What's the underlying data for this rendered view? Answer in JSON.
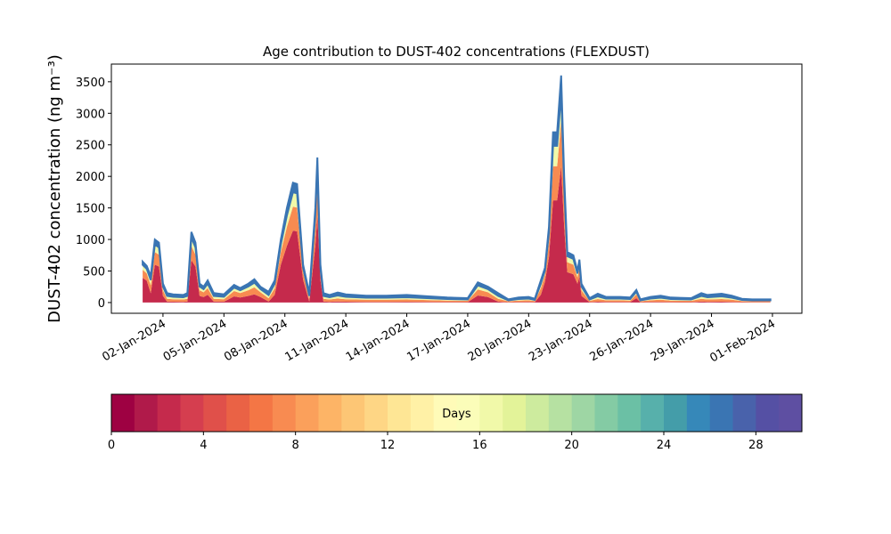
{
  "chart_data": {
    "type": "stacked_area",
    "title": "Age contribution to DUST-402 concentrations (FLEXDUST)",
    "ylabel": "DUST-402 concentration (ng m⁻³)",
    "x": [
      1.0,
      1.2,
      1.4,
      1.6,
      1.8,
      2.0,
      2.2,
      2.5,
      3.0,
      3.2,
      3.4,
      3.6,
      3.8,
      4.0,
      4.2,
      4.5,
      5.0,
      5.5,
      5.8,
      6.2,
      6.5,
      6.8,
      7.2,
      7.5,
      7.8,
      8.1,
      8.4,
      8.6,
      8.9,
      9.2,
      9.5,
      9.6,
      9.75,
      9.9,
      10.2,
      10.6,
      11,
      12,
      13,
      14,
      15,
      16,
      17,
      17.5,
      18,
      18.5,
      19,
      19.5,
      20,
      20.3,
      20.6,
      20.8,
      21,
      21.2,
      21.4,
      21.6,
      21.75,
      21.9,
      22.2,
      22.4,
      22.5,
      22.6,
      23,
      23.4,
      23.8,
      24.5,
      25,
      25.3,
      25.5,
      26,
      26.5,
      27,
      28,
      28.5,
      28.8,
      29.5,
      30,
      30.5,
      31,
      31.9
    ],
    "series": [
      {
        "color": "#c52a4c",
        "values": [
          390,
          348,
          147,
          600,
          570,
          105,
          15,
          13,
          12,
          15,
          672,
          570,
          105,
          88,
          123,
          15,
          13,
          98,
          81,
          105,
          130,
          88,
          17,
          123,
          600,
          900,
          1140,
          1128,
          360,
          15,
          900,
          1380,
          360,
          15,
          12,
          16,
          13,
          11,
          11,
          12,
          10,
          8,
          7,
          112,
          88,
          15,
          5,
          8,
          9,
          6,
          123,
          330,
          720,
          1620,
          1620,
          2160,
          1200,
          480,
          450,
          300,
          408,
          105,
          7,
          14,
          9,
          9,
          8,
          70,
          5,
          9,
          11,
          8,
          7,
          15,
          12,
          14,
          11,
          6,
          5,
          5
        ]
      },
      {
        "color": "#f88b51",
        "values": [
          130,
          116,
          126,
          200,
          190,
          90,
          45,
          39,
          36,
          45,
          224,
          190,
          90,
          75,
          105,
          45,
          39,
          84,
          69,
          90,
          111,
          75,
          51,
          105,
          200,
          300,
          380,
          376,
          120,
          45,
          300,
          460,
          120,
          45,
          36,
          48,
          39,
          33,
          33,
          36,
          30,
          24,
          21,
          96,
          75,
          45,
          15,
          24,
          27,
          18,
          105,
          110,
          240,
          540,
          540,
          720,
          400,
          160,
          150,
          100,
          136,
          90,
          21,
          42,
          27,
          27,
          24,
          60,
          15,
          27,
          33,
          24,
          21,
          45,
          36,
          42,
          33,
          18,
          15,
          15
        ]
      },
      {
        "color": "#f1f9a9",
        "values": [
          78,
          70,
          84,
          120,
          114,
          60,
          45,
          39,
          36,
          45,
          134,
          114,
          60,
          50,
          70,
          45,
          39,
          56,
          46,
          60,
          74,
          50,
          51,
          70,
          120,
          180,
          228,
          226,
          72,
          45,
          180,
          276,
          72,
          45,
          36,
          48,
          39,
          33,
          33,
          36,
          30,
          24,
          21,
          64,
          50,
          45,
          15,
          24,
          27,
          18,
          70,
          66,
          144,
          324,
          324,
          432,
          240,
          96,
          90,
          60,
          82,
          60,
          21,
          42,
          27,
          27,
          24,
          40,
          15,
          27,
          33,
          24,
          21,
          45,
          36,
          42,
          33,
          18,
          15,
          15
        ]
      },
      {
        "color": "#3a75b3",
        "values": [
          52,
          46,
          63,
          80,
          76,
          45,
          45,
          39,
          36,
          45,
          90,
          76,
          45,
          37,
          52,
          45,
          39,
          42,
          34,
          45,
          55,
          37,
          51,
          52,
          80,
          120,
          152,
          150,
          48,
          45,
          120,
          184,
          48,
          45,
          36,
          48,
          39,
          33,
          33,
          36,
          30,
          24,
          21,
          48,
          37,
          45,
          15,
          24,
          27,
          18,
          52,
          44,
          96,
          216,
          216,
          288,
          160,
          64,
          60,
          40,
          54,
          45,
          21,
          42,
          27,
          27,
          24,
          30,
          15,
          27,
          33,
          24,
          21,
          45,
          36,
          42,
          33,
          18,
          15,
          15
        ]
      }
    ],
    "xlim": [
      -0.54,
      33.45
    ],
    "xticks": [
      {
        "value": 2,
        "label": "02-Jan-2024"
      },
      {
        "value": 5,
        "label": "05-Jan-2024"
      },
      {
        "value": 8,
        "label": "08-Jan-2024"
      },
      {
        "value": 11,
        "label": "11-Jan-2024"
      },
      {
        "value": 14,
        "label": "14-Jan-2024"
      },
      {
        "value": 17,
        "label": "17-Jan-2024"
      },
      {
        "value": 20,
        "label": "20-Jan-2024"
      },
      {
        "value": 23,
        "label": "23-Jan-2024"
      },
      {
        "value": 26,
        "label": "26-Jan-2024"
      },
      {
        "value": 29,
        "label": "29-Jan-2024"
      },
      {
        "value": 32,
        "label": "01-Feb-2024"
      }
    ],
    "ylim": [
      -170,
      3780
    ],
    "yticks": [
      0,
      500,
      1000,
      1500,
      2000,
      2500,
      3000,
      3500
    ],
    "colorbar": {
      "label": "Days",
      "lim": [
        0,
        30
      ],
      "ticks": [
        0,
        4,
        8,
        12,
        16,
        20,
        24,
        28
      ],
      "colors": [
        "#9e0142",
        "#b01a4a",
        "#c52a4c",
        "#d53e4f",
        "#e0504a",
        "#ea6245",
        "#f47645",
        "#f88b51",
        "#fba05b",
        "#fdb466",
        "#fdc675",
        "#fed685",
        "#fee695",
        "#fff1a6",
        "#fffbb8",
        "#fbfdb9",
        "#f1f9a9",
        "#e3f399",
        "#cdeb9e",
        "#b6e1a2",
        "#9ed6a4",
        "#84cba4",
        "#6bc0a5",
        "#57b0ab",
        "#449da9",
        "#3688b9",
        "#3a75b3",
        "#4962ab",
        "#5550a4",
        "#5e4fa2"
      ]
    }
  }
}
